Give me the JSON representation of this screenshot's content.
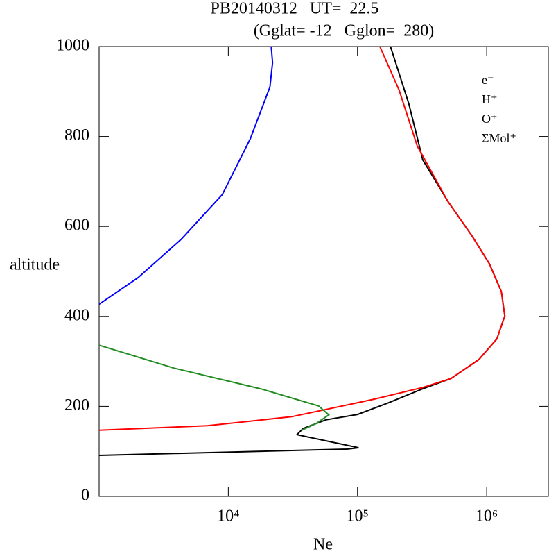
{
  "chart_data": {
    "type": "line",
    "title": "PB20140312   UT=  22.5",
    "subtitle": "(Gglat= -12   Gglon=  280)",
    "x_label": "Ne",
    "y_label": "altitude",
    "x_log": true,
    "xlim": [
      1000,
      3000000
    ],
    "xticks": [
      {
        "value": 10000,
        "label": "10⁴"
      },
      {
        "value": 100000,
        "label": "10⁵"
      },
      {
        "value": 1000000,
        "label": "10⁶"
      }
    ],
    "ylim": [
      0,
      1000
    ],
    "yticks": [
      0,
      200,
      400,
      600,
      800,
      1000
    ],
    "series": [
      {
        "name": "e⁻",
        "color": "#000000",
        "x": [
          1000,
          83000,
          102000,
          34000,
          38000,
          57000,
          100000,
          174000,
          320000,
          530000,
          870000,
          1200000,
          1380000,
          1300000,
          1050000,
          770000,
          500000,
          320000,
          250000,
          180000
        ],
        "values": [
          91,
          105,
          108,
          137,
          151,
          170,
          182,
          208,
          239,
          262,
          304,
          350,
          401,
          455,
          517,
          579,
          656,
          748,
          872,
          1000
        ]
      },
      {
        "name": "H⁺",
        "color": "#0000ff",
        "x": [
          1000,
          2000,
          4300,
          9000,
          14800,
          21000,
          22000,
          21500
        ],
        "values": [
          427,
          486,
          571,
          671,
          795,
          910,
          964,
          1000
        ]
      },
      {
        "name": "O⁺",
        "color": "#ff0000",
        "x": [
          1000,
          6900,
          31000,
          135000,
          320000,
          530000,
          870000,
          1200000,
          1380000,
          1300000,
          1050000,
          770000,
          500000,
          290000,
          210000,
          149000
        ],
        "values": [
          147,
          157,
          177,
          216,
          242,
          262,
          304,
          350,
          401,
          455,
          517,
          579,
          656,
          779,
          903,
          1000
        ]
      },
      {
        "name": "ΣMol⁺",
        "color": "#228b22",
        "x": [
          1000,
          3800,
          17800,
          50000,
          60000,
          48000,
          37000
        ],
        "values": [
          336,
          285,
          239,
          201,
          181,
          162,
          147
        ]
      }
    ]
  }
}
